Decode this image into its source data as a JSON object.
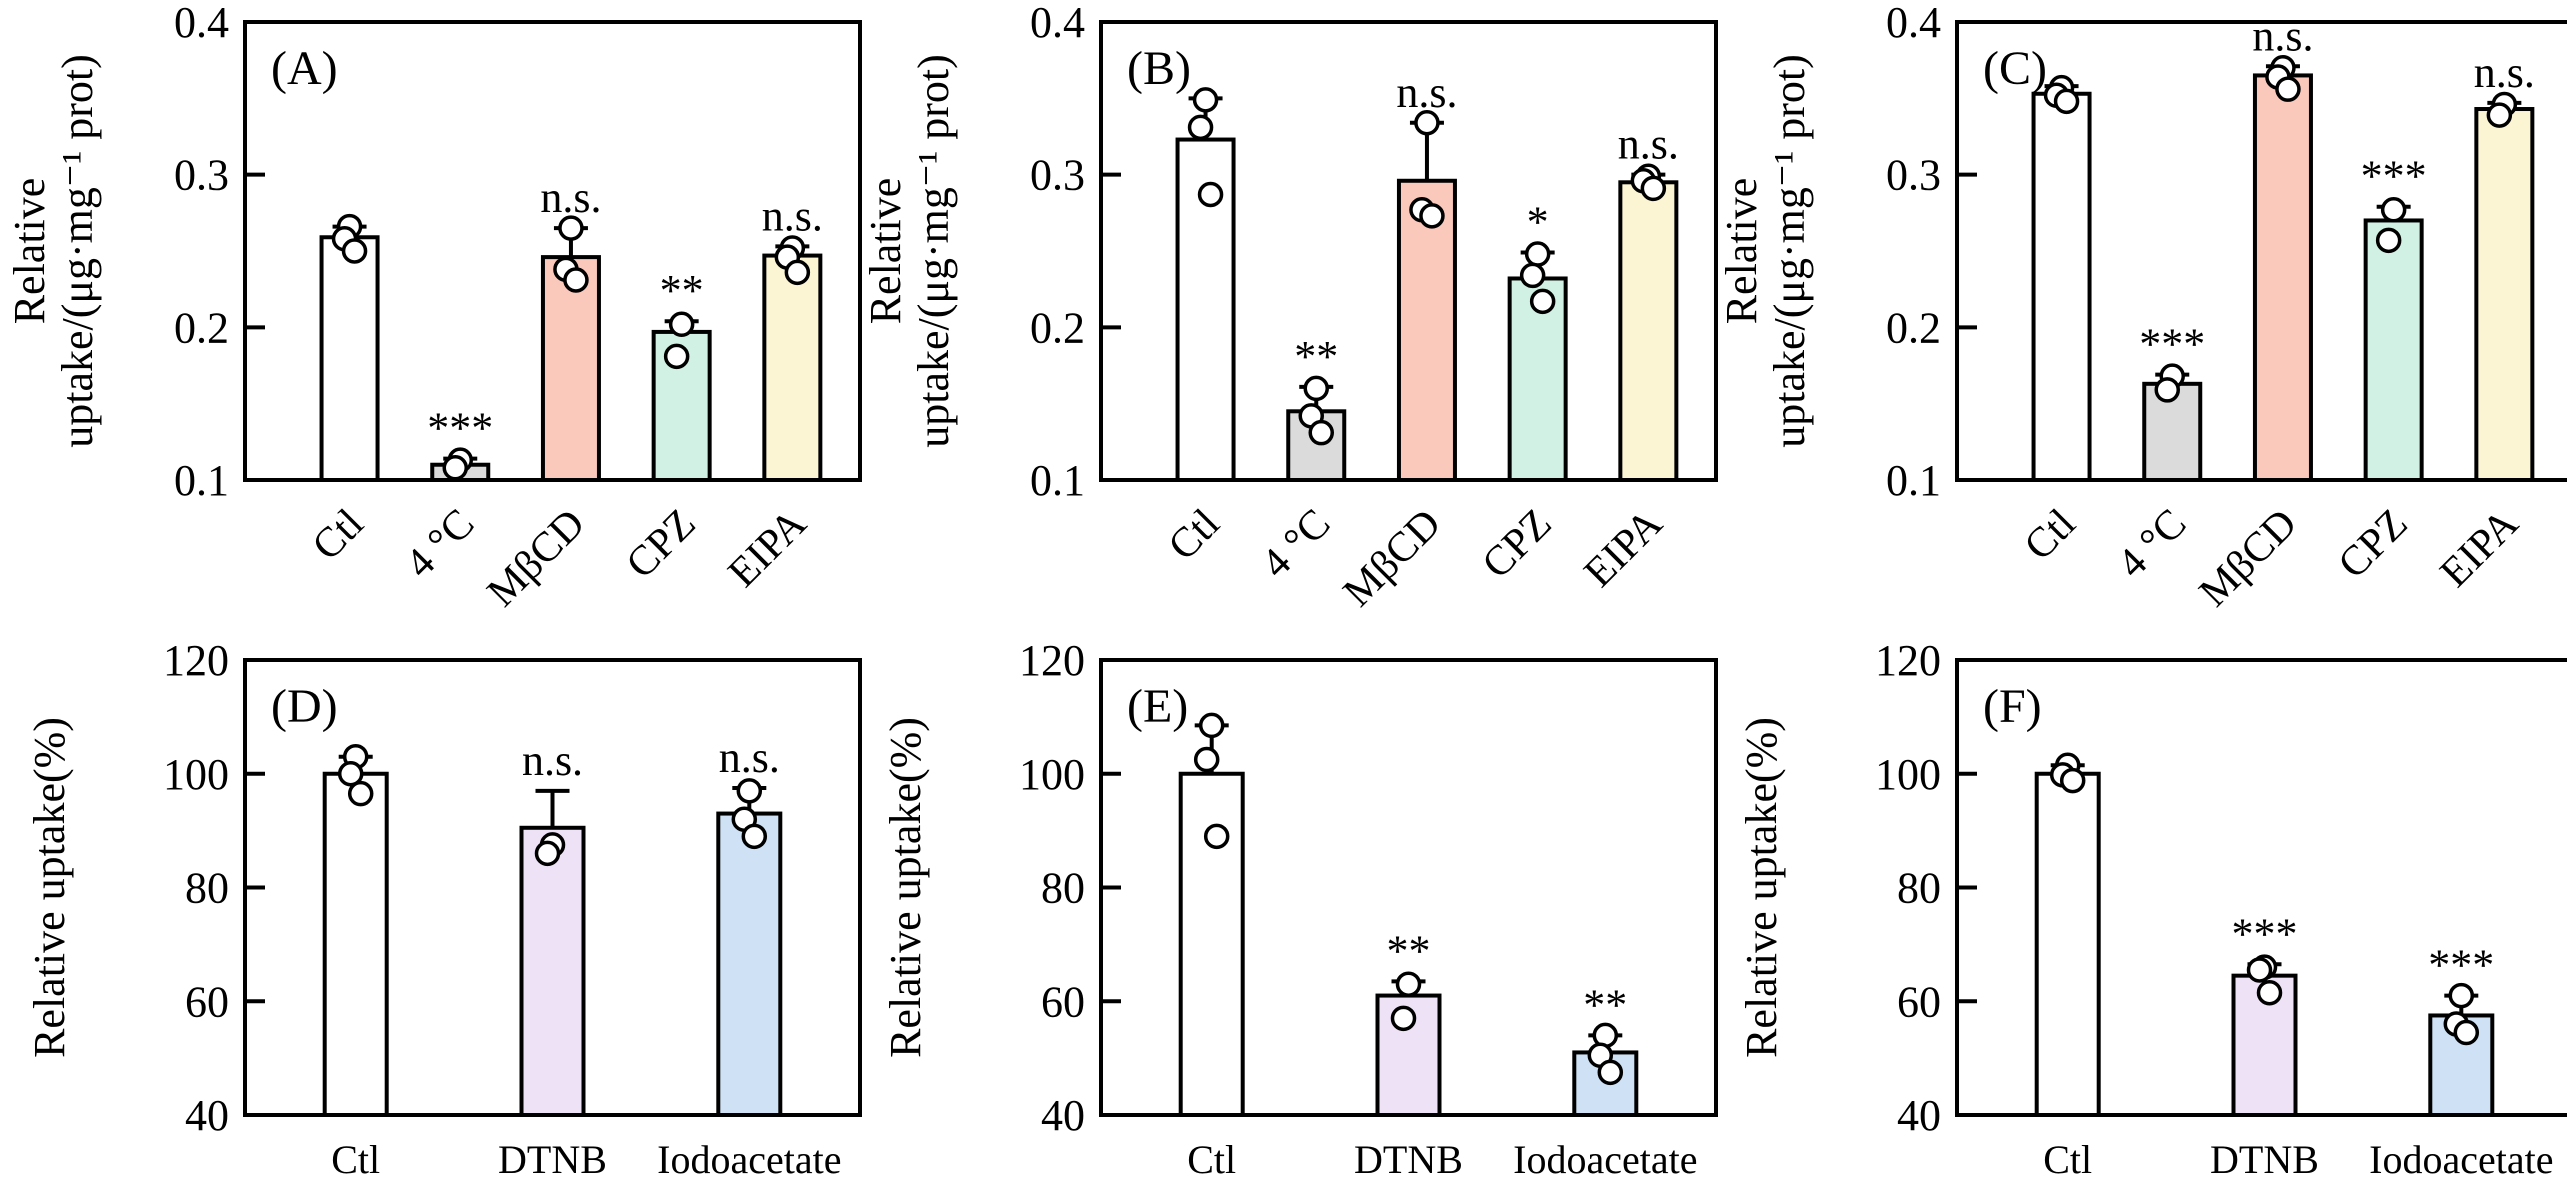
{
  "chart_data": [
    {
      "panel": "(A)",
      "type": "bar",
      "ylabel_lines": [
        "Relative",
        "uptake/(μg·mg⁻¹ prot)"
      ],
      "ylim": [
        0.1,
        0.4
      ],
      "ytick_values": [
        0.1,
        0.2,
        0.3,
        0.4
      ],
      "ytick_labels": [
        "0.1",
        "0.2",
        "0.3",
        "0.4"
      ],
      "categories": [
        "Ctl",
        "4 °C",
        "MβCD",
        "CPZ",
        "EIPA"
      ],
      "rotated_xticks": true,
      "bars": [
        {
          "category": "Ctl",
          "value": 0.259,
          "err": 0.007,
          "sig": "",
          "color": "#FFFFFF",
          "points": [
            0.266,
            0.258,
            0.25
          ]
        },
        {
          "category": "4 °C",
          "value": 0.11,
          "err": 0.004,
          "sig": "***",
          "color": "#DBDBDB",
          "points": [
            0.113,
            0.108
          ]
        },
        {
          "category": "MβCD",
          "value": 0.246,
          "err": 0.019,
          "sig": "n.s.",
          "color": "#FBC8BC",
          "points": [
            0.265,
            0.238,
            0.231
          ]
        },
        {
          "category": "CPZ",
          "value": 0.197,
          "err": 0.007,
          "sig": "**",
          "color": "#D0F1E4",
          "points": [
            0.202,
            0.181
          ]
        },
        {
          "category": "EIPA",
          "value": 0.247,
          "err": 0.006,
          "sig": "n.s.",
          "color": "#FBF5D3",
          "points": [
            0.252,
            0.246,
            0.236
          ]
        }
      ]
    },
    {
      "panel": "(B)",
      "type": "bar",
      "ylabel_lines": [
        "Relative",
        "uptake/(μg·mg⁻¹ prot)"
      ],
      "ylim": [
        0.1,
        0.4
      ],
      "ytick_values": [
        0.1,
        0.2,
        0.3,
        0.4
      ],
      "ytick_labels": [
        "0.1",
        "0.2",
        "0.3",
        "0.4"
      ],
      "categories": [
        "Ctl",
        "4 °C",
        "MβCD",
        "CPZ",
        "EIPA"
      ],
      "rotated_xticks": true,
      "bars": [
        {
          "category": "Ctl",
          "value": 0.323,
          "err": 0.027,
          "sig": "",
          "color": "#FFFFFF",
          "points": [
            0.349,
            0.331,
            0.287
          ]
        },
        {
          "category": "4 °C",
          "value": 0.145,
          "err": 0.016,
          "sig": "**",
          "color": "#DBDBDB",
          "points": [
            0.16,
            0.142,
            0.131
          ]
        },
        {
          "category": "MβCD",
          "value": 0.296,
          "err": 0.038,
          "sig": "n.s.",
          "color": "#FBC8BC",
          "points": [
            0.334,
            0.277,
            0.273
          ]
        },
        {
          "category": "CPZ",
          "value": 0.232,
          "err": 0.017,
          "sig": "*",
          "color": "#D0F1E4",
          "points": [
            0.248,
            0.234,
            0.217
          ]
        },
        {
          "category": "EIPA",
          "value": 0.295,
          "err": 0.005,
          "sig": "n.s.",
          "color": "#FBF5D3",
          "points": [
            0.299,
            0.296,
            0.291
          ]
        }
      ]
    },
    {
      "panel": "(C)",
      "type": "bar",
      "ylabel_lines": [
        "Relative",
        "uptake/(μg·mg⁻¹ prot)"
      ],
      "ylim": [
        0.1,
        0.4
      ],
      "ytick_values": [
        0.1,
        0.2,
        0.3,
        0.4
      ],
      "ytick_labels": [
        "0.1",
        "0.2",
        "0.3",
        "0.4"
      ],
      "categories": [
        "Ctl",
        "4 °C",
        "MβCD",
        "CPZ",
        "EIPA"
      ],
      "rotated_xticks": true,
      "bars": [
        {
          "category": "Ctl",
          "value": 0.353,
          "err": 0.005,
          "sig": "",
          "color": "#FFFFFF",
          "points": [
            0.357,
            0.352,
            0.348
          ]
        },
        {
          "category": "4 °C",
          "value": 0.163,
          "err": 0.006,
          "sig": "***",
          "color": "#DBDBDB",
          "points": [
            0.168,
            0.159
          ]
        },
        {
          "category": "MβCD",
          "value": 0.365,
          "err": 0.006,
          "sig": "n.s.",
          "color": "#FBC8BC",
          "points": [
            0.37,
            0.364,
            0.356
          ]
        },
        {
          "category": "CPZ",
          "value": 0.27,
          "err": 0.009,
          "sig": "***",
          "color": "#D0F1E4",
          "points": [
            0.277,
            0.257
          ]
        },
        {
          "category": "EIPA",
          "value": 0.343,
          "err": 0.004,
          "sig": "n.s.",
          "color": "#FBF5D3",
          "points": [
            0.346,
            0.339
          ]
        }
      ]
    },
    {
      "panel": "(D)",
      "type": "bar",
      "ylabel_lines": [
        "Relative uptake(%)"
      ],
      "ylim": [
        40,
        120
      ],
      "ytick_values": [
        40,
        60,
        80,
        100,
        120
      ],
      "ytick_labels": [
        "40",
        "60",
        "80",
        "100",
        "120"
      ],
      "categories": [
        "Ctl",
        "DTNB",
        "Iodoacetate"
      ],
      "rotated_xticks": false,
      "bars": [
        {
          "category": "Ctl",
          "value": 100,
          "err": 3,
          "sig": "",
          "color": "#FFFFFF",
          "points": [
            103,
            100,
            96.5
          ]
        },
        {
          "category": "DTNB",
          "value": 90.5,
          "err": 6.5,
          "sig": "n.s.",
          "color": "#EDE2F6",
          "points": [
            87.5,
            86
          ]
        },
        {
          "category": "Iodoacetate",
          "value": 93,
          "err": 4.5,
          "sig": "n.s.",
          "color": "#CFE2F5",
          "points": [
            97,
            92,
            89
          ]
        }
      ]
    },
    {
      "panel": "(E)",
      "type": "bar",
      "ylabel_lines": [
        "Relative uptake(%)"
      ],
      "ylim": [
        40,
        120
      ],
      "ytick_values": [
        40,
        60,
        80,
        100,
        120
      ],
      "ytick_labels": [
        "40",
        "60",
        "80",
        "100",
        "120"
      ],
      "categories": [
        "Ctl",
        "DTNB",
        "Iodoacetate"
      ],
      "rotated_xticks": false,
      "bars": [
        {
          "category": "Ctl",
          "value": 100,
          "err": 8.5,
          "sig": "",
          "color": "#FFFFFF",
          "points": [
            108.5,
            102.5,
            89
          ]
        },
        {
          "category": "DTNB",
          "value": 61,
          "err": 2.5,
          "sig": "**",
          "color": "#EDE2F6",
          "points": [
            63,
            57
          ]
        },
        {
          "category": "Iodoacetate",
          "value": 51,
          "err": 3,
          "sig": "**",
          "color": "#CFE2F5",
          "points": [
            54,
            50.5,
            47.5
          ]
        }
      ]
    },
    {
      "panel": "(F)",
      "type": "bar",
      "ylabel_lines": [
        "Relative uptake(%)"
      ],
      "ylim": [
        40,
        120
      ],
      "ytick_values": [
        40,
        60,
        80,
        100,
        120
      ],
      "ytick_labels": [
        "40",
        "60",
        "80",
        "100",
        "120"
      ],
      "categories": [
        "Ctl",
        "DTNB",
        "Iodoacetate"
      ],
      "rotated_xticks": false,
      "bars": [
        {
          "category": "Ctl",
          "value": 100,
          "err": 1.5,
          "sig": "",
          "color": "#FFFFFF",
          "points": [
            101.5,
            99.8,
            98.8
          ]
        },
        {
          "category": "DTNB",
          "value": 64.5,
          "err": 2,
          "sig": "***",
          "color": "#EDE2F6",
          "points": [
            66,
            65.5,
            61.5
          ]
        },
        {
          "category": "Iodoacetate",
          "value": 57.5,
          "err": 3.5,
          "sig": "***",
          "color": "#CFE2F5",
          "points": [
            61,
            56,
            54.5
          ]
        }
      ]
    }
  ],
  "style_colors": {
    "axis": "#000000",
    "point_fill": "#FFFFFF",
    "background": "#FFFFFF"
  }
}
